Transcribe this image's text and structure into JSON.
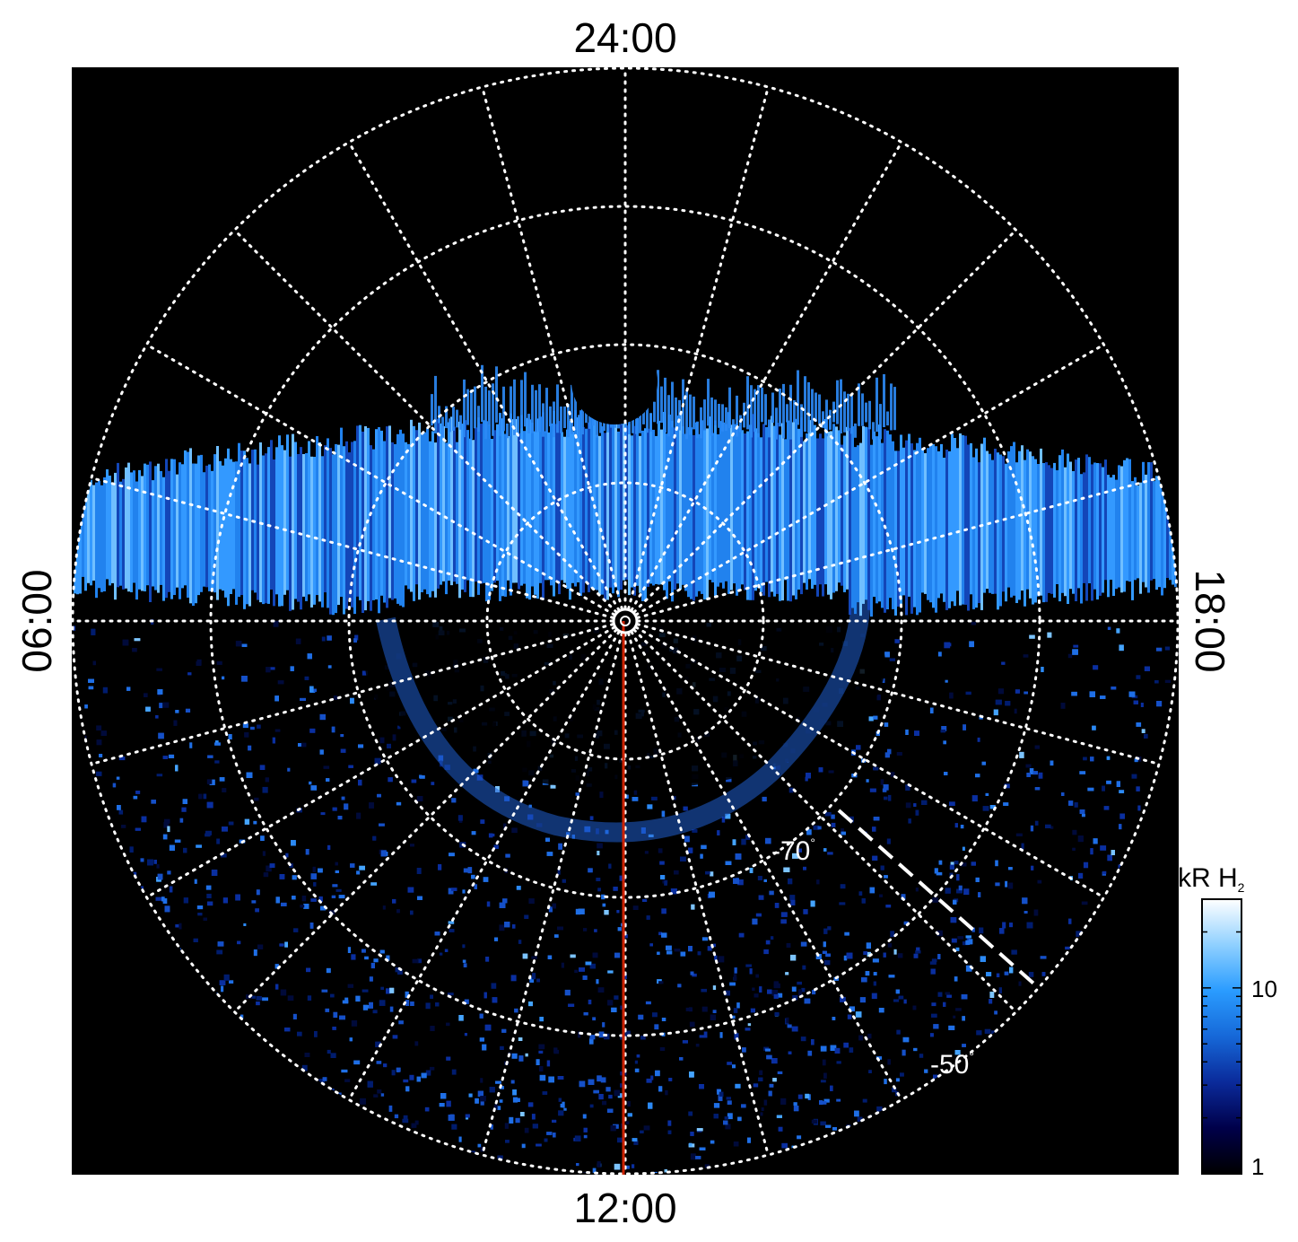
{
  "figure": {
    "local_time_labels": {
      "top": "24:00",
      "bottom": "12:00",
      "left": "06:00",
      "right": "18:00"
    },
    "latitude_labels": [
      {
        "value": "-70",
        "unit": "°"
      },
      {
        "value": "-50",
        "unit": "°"
      }
    ],
    "colorbar": {
      "title": "kR H",
      "title_subscript": "2",
      "scale": "log",
      "range": [
        1,
        30
      ],
      "ticks": [
        {
          "value": 1,
          "label": "1"
        },
        {
          "value": 10,
          "label": "10"
        }
      ],
      "colors": [
        "#000000",
        "#00004a",
        "#0a2a9a",
        "#1668d8",
        "#2a9cff",
        "#8fd0ff",
        "#ffffff"
      ]
    },
    "grid": {
      "latitude_rings_deg": [
        -90,
        -80,
        -70,
        -60,
        -50,
        -40
      ],
      "meridian_spacing_hours": 1,
      "style": "dotted white"
    },
    "overlays": {
      "noon_meridian_color": "#cc2200",
      "dashed_line_color": "#ffffff"
    },
    "background_color": "#000000"
  }
}
